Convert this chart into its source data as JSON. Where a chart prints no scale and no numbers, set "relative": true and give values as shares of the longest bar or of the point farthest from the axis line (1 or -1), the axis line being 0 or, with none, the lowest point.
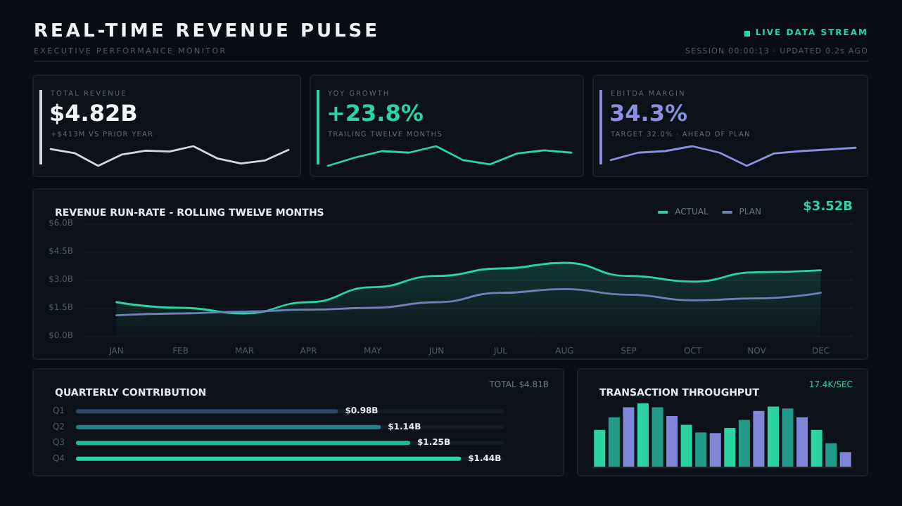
{
  "chart_data": [
    {
      "type": "other",
      "title": "REAL-TIME REVENUE PULSE",
      "subtitle": "EXECUTIVE PERFORMANCE MONITOR",
      "annotations": [
        "LIVE DATA STREAM",
        "SESSION 00:00:13 · UPDATED 0.2s AGO"
      ]
    },
    {
      "type": "line",
      "relative": true,
      "title": "TOTAL REVENUE",
      "annotations": [
        "$4.82B",
        "+$413M VS PRIOR YEAR"
      ],
      "categories": [
        null,
        null,
        null,
        null,
        null,
        null,
        null,
        null,
        null,
        null,
        null
      ],
      "marker": "none",
      "tick_labels": false,
      "series": [
        {
          "color": "#d4d8de",
          "values": [
            0.85,
            0.65,
            0,
            0.58,
            0.77,
            0.73,
            1,
            0.38,
            0.12,
            0.27,
            0.81
          ]
        }
      ]
    },
    {
      "type": "line",
      "relative": true,
      "title": "YOY GROWTH",
      "annotations": [
        "+23.8%",
        "TRAILING TWELVE MONTHS"
      ],
      "categories": [
        null,
        null,
        null,
        null,
        null,
        null,
        null,
        null,
        null,
        null
      ],
      "marker": "none",
      "tick_labels": false,
      "series": [
        {
          "color": "#2bd4a0",
          "values": [
            0,
            0.42,
            0.75,
            0.67,
            1,
            0.29,
            0.08,
            0.63,
            0.79,
            0.67
          ]
        }
      ]
    },
    {
      "type": "line",
      "relative": true,
      "title": "EBITDA MARGIN",
      "annotations": [
        "34.3%",
        "TARGET 32.0% · AHEAD OF PLAN"
      ],
      "categories": [
        null,
        null,
        null,
        null,
        null,
        null,
        null,
        null,
        null,
        null
      ],
      "marker": "none",
      "tick_labels": false,
      "series": [
        {
          "color": "#8a90e0",
          "values": [
            0.29,
            0.67,
            0.75,
            1,
            0.67,
            0,
            0.63,
            0.75,
            0.83,
            0.92
          ]
        }
      ]
    },
    {
      "type": "line",
      "title": "REVENUE RUN-RATE - ROLLING TWELVE MONTHS",
      "annotations": [
        "$3.52B"
      ],
      "categories": [
        "JAN",
        "FEB",
        "MAR",
        "APR",
        "MAY",
        "JUN",
        "JUL",
        "AUG",
        "SEP",
        "OCT",
        "NOV",
        "DEC"
      ],
      "ylim": [
        0,
        6
      ],
      "yticks": [
        {
          "value": 0,
          "label": "$0.0B"
        },
        {
          "value": 1.5,
          "label": "$1.5B"
        },
        {
          "value": 3,
          "label": "$3.0B"
        },
        {
          "value": 4.5,
          "label": "$4.5B"
        },
        {
          "value": 6,
          "label": "$6.0B"
        }
      ],
      "grid": "y",
      "legend": "top right",
      "marker": "none",
      "series": [
        {
          "name": "ACTUAL",
          "type": "area",
          "color": "#2bd4a0",
          "values": [
            1.8,
            1.5,
            1.2,
            1.8,
            2.6,
            3.2,
            3.6,
            3.9,
            3.2,
            2.9,
            3.4,
            3.5
          ]
        },
        {
          "name": "PLAN",
          "color": "#6f7fb8",
          "values": [
            1.1,
            1.2,
            1.3,
            1.4,
            1.5,
            1.8,
            2.3,
            2.5,
            2.2,
            1.9,
            2.0,
            2.3
          ]
        }
      ]
    },
    {
      "type": "bar",
      "orientation": "horizontal",
      "title": "QUARTERLY CONTRIBUTION",
      "annotations": [
        "TOTAL $4.81B"
      ],
      "categories": [
        "Q1",
        "Q2",
        "Q3",
        "Q4"
      ],
      "values": [
        0.98,
        1.14,
        1.25,
        1.44
      ],
      "colors": [
        "#2c4a66",
        "#2a7e87",
        "#27b89a",
        "#2bd4a0"
      ],
      "value_labels": [
        "$0.98B",
        "$1.14B",
        "$1.25B",
        "$1.44B"
      ],
      "xlim": [
        0,
        1.6
      ],
      "tick_labels": "y"
    },
    {
      "type": "bar",
      "relative": true,
      "title": "TRANSACTION THROUGHPUT",
      "annotations": [
        "17.4K/SEC"
      ],
      "categories": [
        null,
        null,
        null,
        null,
        null,
        null,
        null,
        null,
        null,
        null,
        null,
        null,
        null,
        null,
        null,
        null,
        null,
        null
      ],
      "tick_labels": false,
      "values": [
        0.58,
        0.78,
        0.94,
        1,
        0.94,
        0.8,
        0.66,
        0.54,
        0.53,
        0.61,
        0.74,
        0.88,
        0.95,
        0.92,
        0.78,
        0.58,
        0.37,
        0.23
      ],
      "colors": [
        "#2bd4a0",
        "#229b88",
        "#7f86d8",
        "#2bd4a0",
        "#229b88",
        "#7f86d8",
        "#2bd4a0",
        "#229b88",
        "#7f86d8",
        "#2bd4a0",
        "#229b88",
        "#7f86d8",
        "#2bd4a0",
        "#229b88",
        "#7f86d8",
        "#2bd4a0",
        "#229b88",
        "#7f86d8"
      ]
    }
  ]
}
